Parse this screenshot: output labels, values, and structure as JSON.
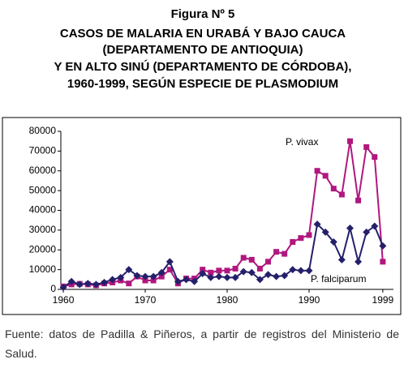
{
  "chart_data": {
    "type": "line",
    "title": "Figura Nº 5",
    "subtitle": [
      "CASOS DE MALARIA EN URABÁ Y BAJO CAUCA",
      "(DEPARTAMENTO DE ANTIOQUIA)",
      "Y EN ALTO SINÚ (DEPARTAMENTO DE CÓRDOBA),",
      "1960-1999, SEGÚN ESPECIE DE PLASMODIUM"
    ],
    "x": [
      1960,
      1961,
      1962,
      1963,
      1964,
      1965,
      1966,
      1967,
      1968,
      1969,
      1970,
      1971,
      1972,
      1973,
      1974,
      1975,
      1976,
      1977,
      1978,
      1979,
      1980,
      1981,
      1982,
      1983,
      1984,
      1985,
      1986,
      1987,
      1988,
      1989,
      1990,
      1991,
      1992,
      1993,
      1994,
      1995,
      1996,
      1997,
      1998,
      1999
    ],
    "series": [
      {
        "name": "P. vivax",
        "color": "#b0177f",
        "marker": "square",
        "values": [
          1500,
          2500,
          2800,
          2500,
          2000,
          3000,
          3500,
          4500,
          3000,
          6500,
          4500,
          4500,
          6500,
          10000,
          3000,
          5500,
          5500,
          10000,
          8500,
          9500,
          9500,
          10500,
          16000,
          15000,
          10500,
          14000,
          19000,
          18000,
          24000,
          26000,
          27500,
          60000,
          57500,
          51000,
          48000,
          75000,
          45000,
          72000,
          67000,
          14000
        ]
      },
      {
        "name": "P. falciparum",
        "color": "#24206b",
        "marker": "diamond",
        "values": [
          1000,
          4000,
          2500,
          3000,
          2500,
          3500,
          5000,
          6000,
          10000,
          7000,
          6500,
          6500,
          8500,
          14000,
          4000,
          5000,
          4000,
          8000,
          6000,
          6500,
          6000,
          6000,
          9000,
          8500,
          5000,
          7500,
          6500,
          7000,
          10000,
          9500,
          9500,
          33000,
          29000,
          24000,
          15000,
          31000,
          14000,
          29000,
          32000,
          22000
        ]
      }
    ],
    "xlim": [
      1959.7,
      2000.3
    ],
    "xticks": [
      1960,
      1970,
      1980,
      1990,
      1999
    ],
    "ylim": [
      0,
      80000
    ],
    "yticks": [
      0,
      10000,
      20000,
      30000,
      40000,
      50000,
      60000,
      70000,
      80000
    ],
    "note": "Fuente: datos de Padilla & Piñeros, a partir de registros del Ministerio de Salud."
  }
}
